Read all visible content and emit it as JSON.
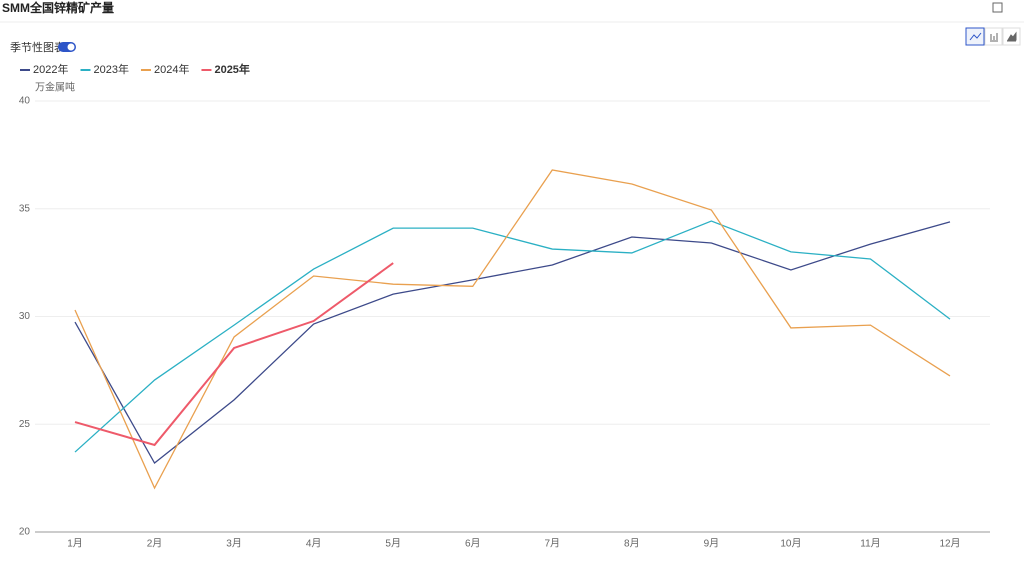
{
  "chart_data": {
    "type": "line",
    "title": "SMM全国锌精矿产量",
    "toggle_label": "季节性图表",
    "y_axis_label": "万金属吨",
    "categories": [
      "1月",
      "2月",
      "3月",
      "4月",
      "5月",
      "6月",
      "7月",
      "8月",
      "9月",
      "10月",
      "11月",
      "12月"
    ],
    "series": [
      {
        "name": "2022年",
        "color": "#3d4a8a",
        "values": [
          29.74,
          23.2,
          26.13,
          29.65,
          31.04,
          31.7,
          32.39,
          33.69,
          33.41,
          32.16,
          33.36,
          34.39
        ]
      },
      {
        "name": "2023年",
        "color": "#2bb0c4",
        "values": [
          23.71,
          27.05,
          29.6,
          32.2,
          34.1,
          34.1,
          33.13,
          32.95,
          34.43,
          33.0,
          32.67,
          29.88
        ]
      },
      {
        "name": "2024年",
        "color": "#e9a04f",
        "values": [
          30.3,
          22.04,
          29.05,
          31.88,
          31.5,
          31.4,
          36.8,
          36.15,
          34.94,
          29.47,
          29.6,
          27.24
        ]
      },
      {
        "name": "2025年",
        "color": "#ee5a6a",
        "values": [
          25.1,
          24.04,
          28.54,
          29.79,
          32.48,
          null,
          null,
          null,
          null,
          null,
          null,
          null
        ]
      }
    ],
    "ylim": [
      20,
      40
    ],
    "yticks": [
      20,
      25,
      30,
      35,
      40
    ],
    "grid": true
  }
}
